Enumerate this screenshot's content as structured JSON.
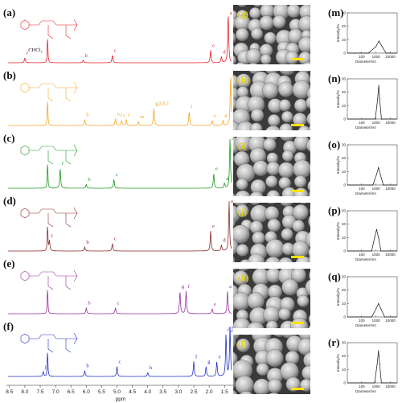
{
  "nmr": {
    "x_axis_label": "ppm",
    "x_ticks": [
      "8.5",
      "8.0",
      "7.5",
      "7.0",
      "6.5",
      "6.0",
      "5.5",
      "5.0",
      "4.5",
      "4.0",
      "3.5",
      "3.0",
      "2.5",
      "2.0",
      "1.5"
    ],
    "panels": [
      {
        "id": "a",
        "label": "(a)",
        "color": "#e8202a",
        "solvent": "CHCl₃",
        "peaks": [
          {
            "t": "f"
          },
          {
            "t": "b"
          },
          {
            "t": "c"
          },
          {
            "t": "e"
          },
          {
            "t": "d"
          },
          {
            "t": "a"
          }
        ]
      },
      {
        "id": "b",
        "label": "(b)",
        "color": "#f5a623",
        "peaks": [
          {
            "t": "b"
          },
          {
            "t": "n,i"
          },
          {
            "t": "l"
          },
          {
            "t": "c"
          },
          {
            "t": "m"
          },
          {
            "t": "g,h,k,l"
          },
          {
            "t": "f"
          },
          {
            "t": "e"
          },
          {
            "t": "d"
          },
          {
            "t": "a"
          }
        ]
      },
      {
        "id": "c",
        "label": "(c)",
        "color": "#1a9a20",
        "peaks": [
          {
            "t": "f"
          },
          {
            "t": "b"
          },
          {
            "t": "c"
          },
          {
            "t": "e"
          },
          {
            "t": "d"
          },
          {
            "t": "a"
          }
        ]
      },
      {
        "id": "d",
        "label": "(d)",
        "color": "#8b2a2a",
        "peaks": [
          {
            "t": "f"
          },
          {
            "t": "b"
          },
          {
            "t": "c"
          },
          {
            "t": "e"
          },
          {
            "t": "d"
          },
          {
            "t": "a"
          }
        ]
      },
      {
        "id": "e",
        "label": "(e)",
        "color": "#9b2ea0",
        "peaks": [
          {
            "t": "b"
          },
          {
            "t": "c"
          },
          {
            "t": "g"
          },
          {
            "t": "f"
          },
          {
            "t": "e"
          },
          {
            "t": "a"
          }
        ]
      },
      {
        "id": "f",
        "label": "(f)",
        "color": "#1f2fc8",
        "peaks": [
          {
            "t": "j"
          },
          {
            "t": "b"
          },
          {
            "t": "c"
          },
          {
            "t": "h"
          },
          {
            "t": "f"
          },
          {
            "t": "g"
          },
          {
            "t": "e"
          },
          {
            "t": "d,j"
          },
          {
            "t": "a"
          }
        ]
      }
    ]
  },
  "sem": {
    "panels": [
      {
        "id": "g",
        "label": "(g)"
      },
      {
        "id": "h",
        "label": "(h)"
      },
      {
        "id": "i",
        "label": "(i)"
      },
      {
        "id": "j",
        "label": "(j)"
      },
      {
        "id": "k",
        "label": "(k)"
      },
      {
        "id": "l",
        "label": "(l)"
      }
    ]
  },
  "dls": {
    "y_axis_label": "Intensity/%",
    "x_axis_label": "Diameter/nm",
    "y_ticks": [
      "0",
      "10",
      "20",
      "30"
    ],
    "x_ticks": [
      "100",
      "1000",
      "10000"
    ],
    "panels": [
      {
        "id": "m",
        "label": "(m)"
      },
      {
        "id": "n",
        "label": "(n)"
      },
      {
        "id": "o",
        "label": "(o)"
      },
      {
        "id": "p",
        "label": "(p)"
      },
      {
        "id": "q",
        "label": "(q)"
      },
      {
        "id": "r",
        "label": "(r)"
      }
    ]
  },
  "chart_data": [
    {
      "type": "line",
      "title": "",
      "xlabel": "Diameter/nm",
      "ylabel": "Intensity/%",
      "x_scale": "log",
      "ylim": [
        0,
        30
      ],
      "xlim": [
        10,
        30000
      ],
      "series": [
        {
          "values": [
            {
              "x": 300,
              "y": 0
            },
            {
              "x": 1000,
              "y": 5
            },
            {
              "x": 1600,
              "y": 9
            },
            {
              "x": 2600,
              "y": 5
            },
            {
              "x": 5000,
              "y": 0
            }
          ]
        }
      ]
    },
    {
      "type": "line",
      "title": "",
      "xlabel": "Diameter/nm",
      "ylabel": "Intensity/%",
      "x_scale": "log",
      "ylim": [
        0,
        30
      ],
      "xlim": [
        10,
        30000
      ],
      "series": [
        {
          "values": [
            {
              "x": 900,
              "y": 0
            },
            {
              "x": 1300,
              "y": 15
            },
            {
              "x": 1550,
              "y": 25
            },
            {
              "x": 1800,
              "y": 15
            },
            {
              "x": 2400,
              "y": 0
            }
          ]
        }
      ]
    },
    {
      "type": "line",
      "title": "",
      "xlabel": "Diameter/nm",
      "ylabel": "Intensity/%",
      "x_scale": "log",
      "ylim": [
        0,
        30
      ],
      "xlim": [
        10,
        30000
      ],
      "series": [
        {
          "values": [
            {
              "x": 600,
              "y": 0
            },
            {
              "x": 1100,
              "y": 8
            },
            {
              "x": 1500,
              "y": 13
            },
            {
              "x": 2000,
              "y": 8
            },
            {
              "x": 3200,
              "y": 0
            }
          ]
        }
      ]
    },
    {
      "type": "line",
      "title": "",
      "xlabel": "Diameter/nm",
      "ylabel": "Intensity/%",
      "x_scale": "log",
      "ylim": [
        0,
        30
      ],
      "xlim": [
        10,
        30000
      ],
      "series": [
        {
          "values": [
            {
              "x": 500,
              "y": 0
            },
            {
              "x": 800,
              "y": 10
            },
            {
              "x": 1100,
              "y": 16
            },
            {
              "x": 1500,
              "y": 10
            },
            {
              "x": 2200,
              "y": 0
            }
          ]
        }
      ]
    },
    {
      "type": "line",
      "title": "",
      "xlabel": "Diameter/nm",
      "ylabel": "Intensity/%",
      "x_scale": "log",
      "ylim": [
        0,
        30
      ],
      "xlim": [
        10,
        30000
      ],
      "series": [
        {
          "values": [
            {
              "x": 500,
              "y": 0
            },
            {
              "x": 1000,
              "y": 6
            },
            {
              "x": 1500,
              "y": 10
            },
            {
              "x": 2200,
              "y": 6
            },
            {
              "x": 4000,
              "y": 0
            }
          ]
        }
      ]
    },
    {
      "type": "line",
      "title": "",
      "xlabel": "Diameter/nm",
      "ylabel": "Intensity/%",
      "x_scale": "log",
      "ylim": [
        0,
        30
      ],
      "xlim": [
        10,
        30000
      ],
      "series": [
        {
          "values": [
            {
              "x": 800,
              "y": 0
            },
            {
              "x": 1200,
              "y": 14
            },
            {
              "x": 1500,
              "y": 24
            },
            {
              "x": 1800,
              "y": 14
            },
            {
              "x": 2400,
              "y": 0
            }
          ]
        }
      ]
    }
  ]
}
